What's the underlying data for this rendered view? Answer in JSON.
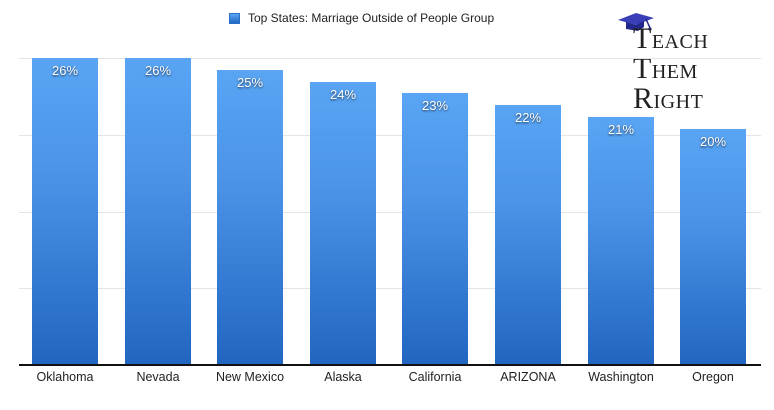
{
  "legend": {
    "label": "Top States: Marriage Outside of People Group",
    "color": "#3b82dc"
  },
  "logo": {
    "lines": [
      {
        "initial": "T",
        "rest": "EACH"
      },
      {
        "initial": "T",
        "rest": "HEM"
      },
      {
        "initial": "R",
        "rest": "IGHT"
      }
    ]
  },
  "bars": [
    {
      "category": "Oklahoma",
      "value": 26,
      "label": "26%"
    },
    {
      "category": "Nevada",
      "value": 26,
      "label": "26%"
    },
    {
      "category": "New Mexico",
      "value": 25,
      "label": "25%"
    },
    {
      "category": "Alaska",
      "value": 24,
      "label": "24%"
    },
    {
      "category": "California",
      "value": 23,
      "label": "23%"
    },
    {
      "category": "ARIZONA",
      "value": 22,
      "label": "22%"
    },
    {
      "category": "Washington",
      "value": 21,
      "label": "21%"
    },
    {
      "category": "Oregon",
      "value": 20,
      "label": "20%"
    }
  ],
  "chart_data": {
    "type": "bar",
    "title": "",
    "categories": [
      "Oklahoma",
      "Nevada",
      "New Mexico",
      "Alaska",
      "California",
      "ARIZONA",
      "Washington",
      "Oregon"
    ],
    "series": [
      {
        "name": "Top States: Marriage Outside of People Group",
        "values": [
          26,
          26,
          25,
          24,
          23,
          22,
          21,
          20
        ]
      }
    ],
    "data_labels": [
      "26%",
      "26%",
      "25%",
      "24%",
      "23%",
      "22%",
      "21%",
      "20%"
    ],
    "xlabel": "",
    "ylabel": "",
    "ylim": [
      0,
      26
    ],
    "y_tick_labels_visible": false,
    "grid": true,
    "legend_position": "top"
  }
}
